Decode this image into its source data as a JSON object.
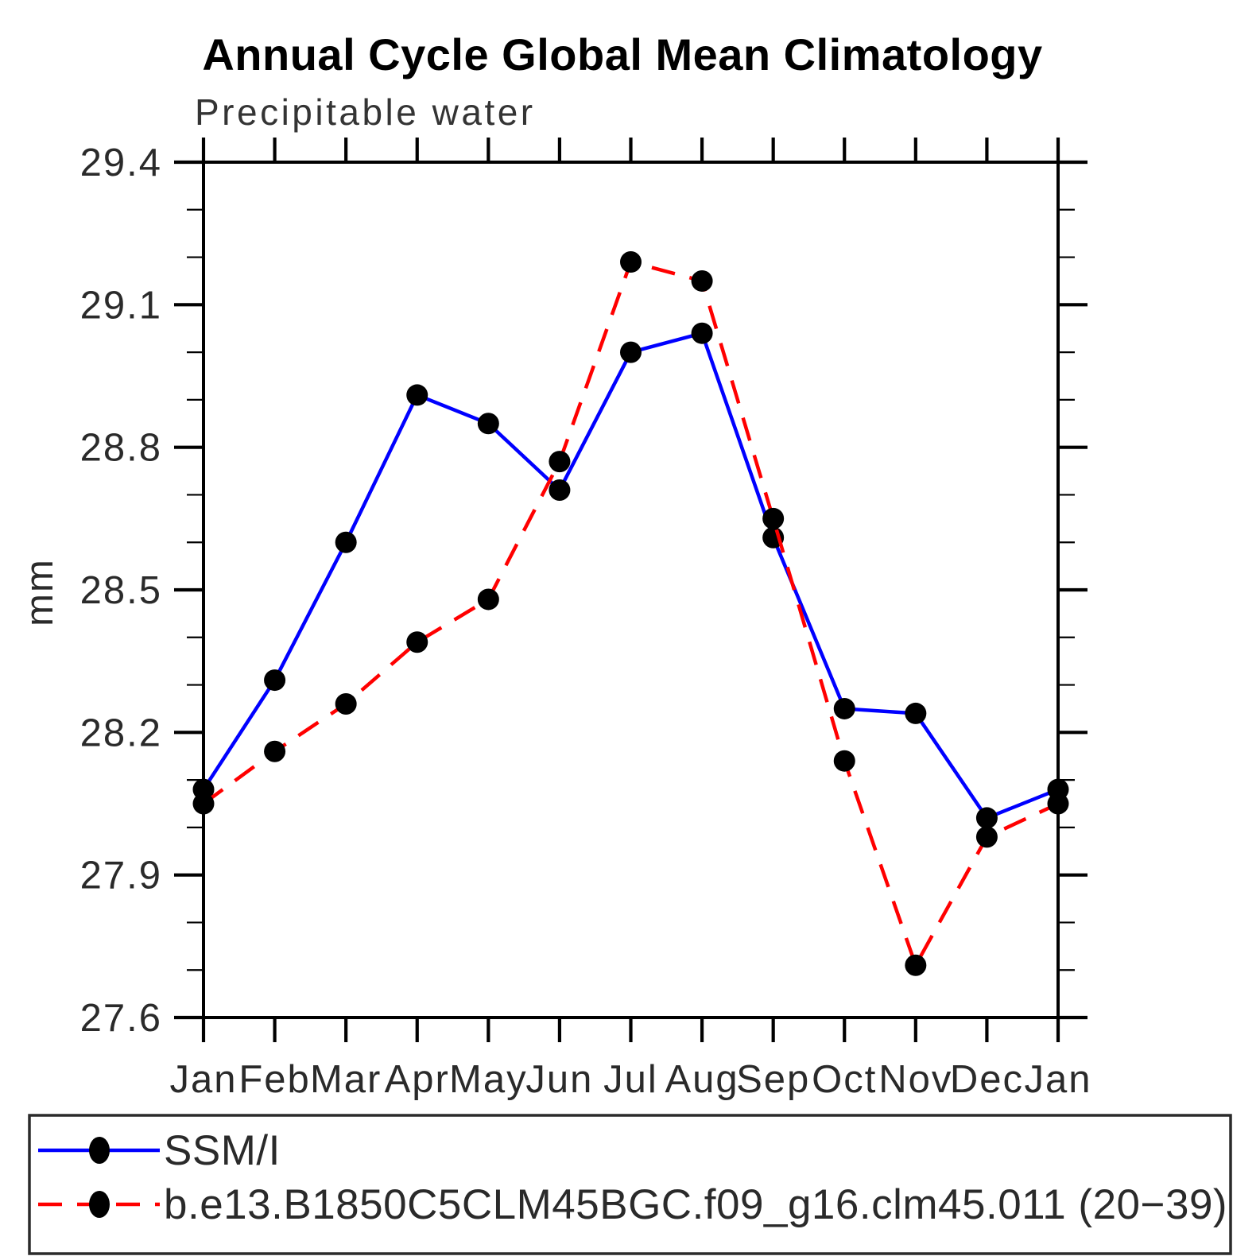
{
  "title": "Annual Cycle Global Mean Climatology",
  "subtitle": "Precipitable water",
  "ylabel": "mm",
  "colors": {
    "obs_line": "#0000ff",
    "model_line": "#ff0000",
    "marker": "#000000",
    "axis": "#000000"
  },
  "chart_data": {
    "type": "line",
    "x_categories": [
      "Jan",
      "Feb",
      "Mar",
      "Apr",
      "May",
      "Jun",
      "Jul",
      "Aug",
      "Sep",
      "Oct",
      "Nov",
      "Dec",
      "Jan"
    ],
    "ylim": [
      27.6,
      29.4
    ],
    "ytick_major_step": 0.3,
    "ytick_minor_step": 0.1,
    "ytick_labels": [
      "27.6",
      "27.9",
      "28.2",
      "28.5",
      "28.8",
      "29.1",
      "29.4"
    ],
    "grid": false,
    "legend_position": "bottom-left-box",
    "series": [
      {
        "name": "SSM/I",
        "style": "solid",
        "color": "#0000ff",
        "values": [
          28.08,
          28.31,
          28.6,
          28.91,
          28.85,
          28.71,
          29.0,
          29.04,
          28.61,
          28.25,
          28.24,
          28.02,
          28.08
        ]
      },
      {
        "name": "b.e13.B1850C5CLM45BGC.f09_g16.clm45.011 (20−39)",
        "style": "dashed",
        "color": "#ff0000",
        "values": [
          28.05,
          28.16,
          28.26,
          28.39,
          28.48,
          28.77,
          29.19,
          29.15,
          28.65,
          28.14,
          27.71,
          27.98,
          28.05
        ]
      }
    ]
  }
}
